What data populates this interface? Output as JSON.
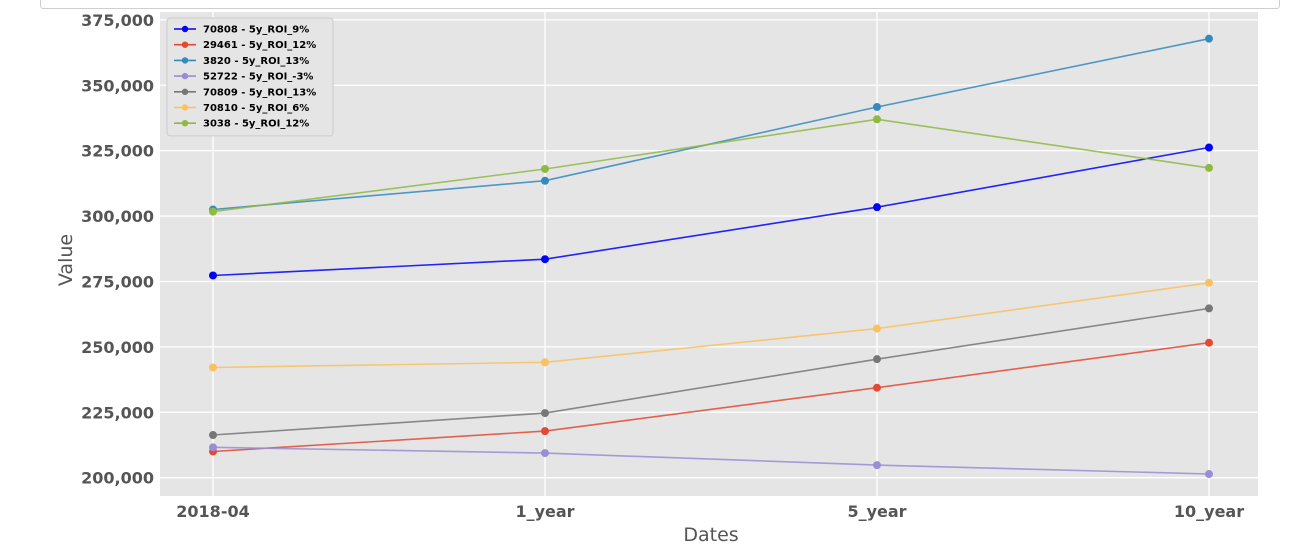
{
  "chart_data": {
    "type": "line",
    "title": "",
    "xlabel": "Dates",
    "ylabel": "Value",
    "categories": [
      "2018-04",
      "1_year",
      "5_year",
      "10_year"
    ],
    "ylim": [
      193000,
      378000
    ],
    "yticks": [
      200000,
      225000,
      250000,
      275000,
      300000,
      325000,
      350000,
      375000
    ],
    "ytick_labels": [
      "200,000",
      "225,000",
      "250,000",
      "275,000",
      "300,000",
      "325,000",
      "350,000",
      "375,000"
    ],
    "grid": true,
    "legend_position": "top-left",
    "series": [
      {
        "name": "70808 - 5y_ROI_9%",
        "color": "#0000ff",
        "values": [
          277300,
          283500,
          303400,
          326200
        ]
      },
      {
        "name": "29461 - 5y_ROI_12%",
        "color": "#e24a33",
        "values": [
          210000,
          217800,
          234400,
          251600
        ]
      },
      {
        "name": "3820 - 5y_ROI_13%",
        "color": "#348abd",
        "values": [
          302500,
          313500,
          341700,
          367800
        ]
      },
      {
        "name": "52722 - 5y_ROI_-3%",
        "color": "#988ed5",
        "values": [
          211600,
          209400,
          204800,
          201400
        ]
      },
      {
        "name": "70809 - 5y_ROI_13%",
        "color": "#777777",
        "values": [
          216300,
          224700,
          245300,
          264700
        ]
      },
      {
        "name": "70810 - 5y_ROI_6%",
        "color": "#fbc15e",
        "values": [
          242100,
          244100,
          257000,
          274500
        ]
      },
      {
        "name": "3038 - 5y_ROI_12%",
        "color": "#8eba42",
        "values": [
          301700,
          318000,
          337000,
          318400
        ]
      }
    ]
  }
}
